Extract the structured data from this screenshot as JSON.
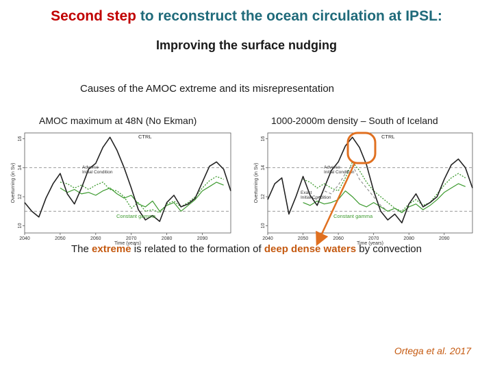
{
  "title": {
    "part1": "Second step",
    "part2": "to reconstruct the ocean circulation at IPSL:"
  },
  "subtitle": "Improving the surface nudging",
  "causes": "Causes of the AMOC extreme  and its misrepresentation",
  "bottom": {
    "before": "The ",
    "extreme": "extreme",
    "middle": " is related to the formation of ",
    "deep": "deep dense waters",
    "after": " by convection"
  },
  "citation": "Ortega et al. 2017",
  "colors": {
    "ctrl": "#222222",
    "green": "#3c9a2e",
    "highlight": "#c55a11",
    "arrow": "#e07020",
    "titleRed": "#c00000",
    "titleTeal": "#1f6a7a"
  },
  "chart_data": [
    {
      "type": "line",
      "title": "AMOC maximum at 48N (No Ekman)",
      "xlabel": "Time (years)",
      "ylabel": "Overturning (in Sv)",
      "xticks": [
        "2040",
        "2050",
        "2060",
        "2070",
        "2080",
        "2090"
      ],
      "yticks": [
        "10",
        "12",
        "14",
        "16"
      ],
      "xlim": [
        2040,
        2098
      ],
      "ylim": [
        9.5,
        16.4
      ],
      "hlines": [
        14.0,
        11.0
      ],
      "annotations": [
        "CTRL",
        "Adverse Initial Condition",
        "Constant gamma"
      ],
      "series": [
        {
          "name": "CTRL",
          "style": "solid-black",
          "x": [
            2040,
            2042,
            2044,
            2046,
            2048,
            2050,
            2052,
            2054,
            2056,
            2058,
            2060,
            2062,
            2064,
            2066,
            2068,
            2070,
            2072,
            2074,
            2076,
            2078,
            2080,
            2082,
            2084,
            2086,
            2088,
            2090,
            2092,
            2094,
            2096,
            2098
          ],
          "y": [
            11.6,
            11.0,
            10.6,
            11.9,
            12.9,
            13.6,
            12.2,
            11.5,
            12.6,
            13.9,
            14.3,
            15.4,
            16.1,
            15.2,
            14.0,
            12.6,
            11.1,
            10.4,
            10.7,
            10.3,
            11.6,
            12.1,
            11.3,
            11.5,
            11.9,
            13.0,
            14.1,
            14.4,
            13.9,
            12.4
          ]
        },
        {
          "name": "Adverse Initial Condition",
          "style": "dotted-green",
          "x": [
            2050,
            2052,
            2054,
            2056,
            2058,
            2060,
            2062,
            2064,
            2066,
            2068,
            2070,
            2072,
            2074,
            2076,
            2078,
            2080,
            2082,
            2084,
            2086,
            2088,
            2090,
            2092,
            2094,
            2096
          ],
          "y": [
            13.0,
            12.9,
            12.6,
            12.8,
            12.5,
            12.8,
            13.0,
            12.5,
            12.4,
            12.0,
            11.2,
            11.6,
            11.0,
            11.1,
            10.9,
            11.5,
            11.7,
            11.3,
            11.6,
            12.0,
            12.6,
            13.1,
            13.4,
            13.2
          ]
        },
        {
          "name": "Constant gamma",
          "style": "solid-green",
          "x": [
            2050,
            2052,
            2054,
            2056,
            2058,
            2060,
            2062,
            2064,
            2066,
            2068,
            2070,
            2072,
            2074,
            2076,
            2078,
            2080,
            2082,
            2084,
            2086,
            2088,
            2090,
            2092,
            2094,
            2096
          ],
          "y": [
            12.6,
            12.3,
            12.5,
            12.2,
            12.3,
            12.1,
            12.4,
            12.6,
            12.2,
            11.9,
            12.1,
            11.5,
            11.3,
            11.7,
            11.0,
            11.4,
            11.6,
            11.0,
            11.4,
            11.8,
            12.4,
            12.7,
            13.0,
            12.8
          ]
        }
      ]
    },
    {
      "type": "line",
      "title": "1000-2000m density – South of Iceland",
      "xlabel": "Time (years)",
      "ylabel": "Overturning (in Sv)",
      "xticks": [
        "2040",
        "2050",
        "2060",
        "2070",
        "2080",
        "2090"
      ],
      "yticks": [
        "10",
        "12",
        "14",
        "16"
      ],
      "xlim": [
        2040,
        2098
      ],
      "ylim": [
        9.5,
        16.4
      ],
      "hlines": [
        14.0,
        11.0
      ],
      "annotations": [
        "CTRL",
        "Adverse Initial Condition",
        "Exact Initial Condition",
        "Constant gamma"
      ],
      "series": [
        {
          "name": "CTRL",
          "style": "solid-black",
          "x": [
            2040,
            2042,
            2044,
            2046,
            2048,
            2050,
            2052,
            2054,
            2056,
            2058,
            2060,
            2062,
            2064,
            2066,
            2068,
            2070,
            2072,
            2074,
            2076,
            2078,
            2080,
            2082,
            2084,
            2086,
            2088,
            2090,
            2092,
            2094,
            2096,
            2098
          ],
          "y": [
            11.8,
            12.9,
            13.3,
            10.8,
            12.0,
            13.4,
            12.1,
            11.4,
            12.6,
            13.8,
            14.4,
            15.5,
            16.1,
            15.4,
            14.2,
            12.4,
            11.0,
            10.4,
            10.8,
            10.2,
            11.5,
            12.2,
            11.3,
            11.6,
            12.0,
            13.2,
            14.2,
            14.6,
            14.0,
            12.6
          ]
        },
        {
          "name": "Adverse Initial Condition",
          "style": "dotted-green",
          "x": [
            2050,
            2052,
            2054,
            2056,
            2058,
            2060,
            2062,
            2064,
            2066,
            2068,
            2070,
            2072,
            2074,
            2076,
            2078,
            2080,
            2082,
            2084,
            2086,
            2088,
            2090,
            2092,
            2094,
            2096
          ],
          "y": [
            13.2,
            13.0,
            12.6,
            12.9,
            12.6,
            12.4,
            13.3,
            14.4,
            13.8,
            13.0,
            12.4,
            12.0,
            11.6,
            11.2,
            11.0,
            11.5,
            11.8,
            11.4,
            11.6,
            12.2,
            12.8,
            13.3,
            13.6,
            13.3
          ]
        },
        {
          "name": "Exact Initial Condition",
          "style": "dashed-gray",
          "x": [
            2052,
            2054,
            2056,
            2058,
            2060,
            2062,
            2064,
            2066,
            2068,
            2070,
            2072,
            2074,
            2076,
            2078,
            2080
          ],
          "y": [
            12.0,
            11.8,
            12.4,
            12.2,
            12.8,
            13.6,
            14.2,
            13.2,
            12.6,
            12.0,
            11.4,
            11.0,
            11.2,
            10.9,
            11.3
          ]
        },
        {
          "name": "Constant gamma",
          "style": "solid-green",
          "x": [
            2050,
            2052,
            2054,
            2056,
            2058,
            2060,
            2062,
            2064,
            2066,
            2068,
            2070,
            2072,
            2074,
            2076,
            2078,
            2080,
            2082,
            2084,
            2086,
            2088,
            2090,
            2092,
            2094,
            2096
          ],
          "y": [
            11.6,
            11.4,
            11.7,
            11.5,
            11.6,
            11.8,
            12.4,
            12.0,
            11.5,
            11.3,
            11.6,
            11.3,
            11.0,
            11.2,
            10.9,
            11.3,
            11.5,
            11.1,
            11.4,
            11.8,
            12.3,
            12.6,
            12.9,
            12.7
          ]
        }
      ]
    }
  ]
}
